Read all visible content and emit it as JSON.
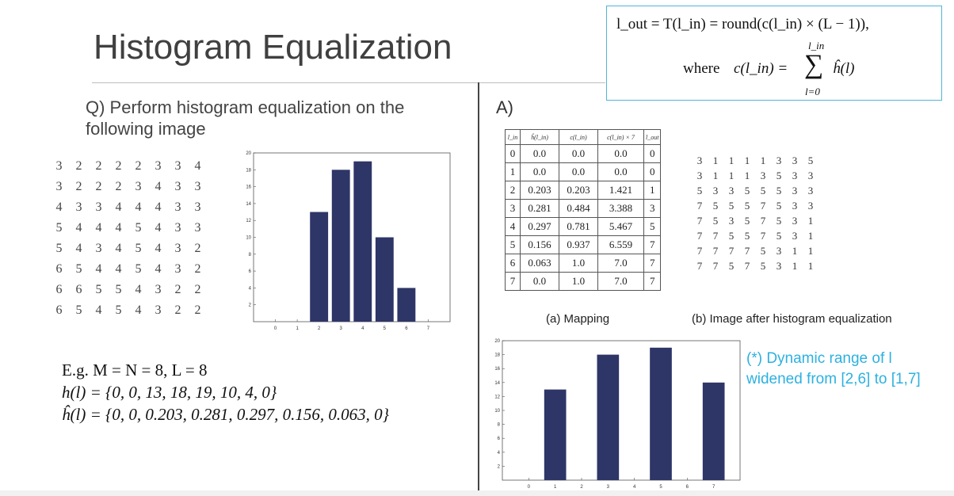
{
  "slide": {
    "title": "Histogram Equalization",
    "question_line1": "Q) Perform histogram equalization on the",
    "question_line2": "following image",
    "answer_label": "A)"
  },
  "formula": {
    "line1": "l_out = T(l_in) = round(c(l_in) × (L − 1)),",
    "line2_word": "where",
    "line2_lhs": "c(l_in) =",
    "sum_top": "l_in",
    "sum_bottom": "l=0",
    "sum_term": "ĥ(l)"
  },
  "input_image": [
    [
      "3",
      "2",
      "2",
      "2",
      "2",
      "3",
      "3",
      "4"
    ],
    [
      "3",
      "2",
      "2",
      "2",
      "3",
      "4",
      "3",
      "3"
    ],
    [
      "4",
      "3",
      "3",
      "4",
      "4",
      "4",
      "3",
      "3"
    ],
    [
      "5",
      "4",
      "4",
      "4",
      "5",
      "4",
      "3",
      "3"
    ],
    [
      "5",
      "4",
      "3",
      "4",
      "5",
      "4",
      "3",
      "2"
    ],
    [
      "6",
      "5",
      "4",
      "4",
      "5",
      "4",
      "3",
      "2"
    ],
    [
      "6",
      "6",
      "5",
      "5",
      "4",
      "3",
      "2",
      "2"
    ],
    [
      "6",
      "5",
      "4",
      "5",
      "4",
      "3",
      "2",
      "2"
    ]
  ],
  "mapping": {
    "headers": [
      "l_in",
      "ĥ(l_in)",
      "c(l_in)",
      "c(l_in) × 7",
      "l_out"
    ],
    "rows": [
      [
        "0",
        "0.0",
        "0.0",
        "0.0",
        "0"
      ],
      [
        "1",
        "0.0",
        "0.0",
        "0.0",
        "0"
      ],
      [
        "2",
        "0.203",
        "0.203",
        "1.421",
        "1"
      ],
      [
        "3",
        "0.281",
        "0.484",
        "3.388",
        "3"
      ],
      [
        "4",
        "0.297",
        "0.781",
        "5.467",
        "5"
      ],
      [
        "5",
        "0.156",
        "0.937",
        "6.559",
        "7"
      ],
      [
        "6",
        "0.063",
        "1.0",
        "7.0",
        "7"
      ],
      [
        "7",
        "0.0",
        "1.0",
        "7.0",
        "7"
      ]
    ],
    "caption": "(a) Mapping"
  },
  "output_image": {
    "rows": [
      [
        "3",
        "1",
        "1",
        "1",
        "1",
        "3",
        "3",
        "5"
      ],
      [
        "3",
        "1",
        "1",
        "1",
        "3",
        "5",
        "3",
        "3"
      ],
      [
        "5",
        "3",
        "3",
        "5",
        "5",
        "5",
        "3",
        "3"
      ],
      [
        "7",
        "5",
        "5",
        "5",
        "7",
        "5",
        "3",
        "3"
      ],
      [
        "7",
        "5",
        "3",
        "5",
        "7",
        "5",
        "3",
        "1"
      ],
      [
        "7",
        "7",
        "5",
        "5",
        "7",
        "5",
        "3",
        "1"
      ],
      [
        "7",
        "7",
        "7",
        "7",
        "5",
        "3",
        "1",
        "1"
      ],
      [
        "7",
        "7",
        "5",
        "7",
        "5",
        "3",
        "1",
        "1"
      ]
    ],
    "caption": "(b) Image after histogram equalization"
  },
  "example": {
    "line1": "E.g. M = N = 8,   L = 8",
    "line2": "h(l) = {0, 0, 13, 18, 19, 10, 4, 0}",
    "line3": "ĥ(l) = {0, 0, 0.203, 0.281, 0.297, 0.156, 0.063, 0}"
  },
  "note": {
    "line1": "(*) Dynamic range of l",
    "line2": "widened from [2,6] to [1,7]"
  },
  "colors": {
    "bar": "#2e3567",
    "accent": "#2cb1e0",
    "box_border": "#4fb6d8"
  },
  "chart_data": [
    {
      "type": "bar",
      "categories": [
        "0",
        "1",
        "2",
        "3",
        "4",
        "5",
        "6",
        "7"
      ],
      "values": [
        0,
        0,
        13,
        18,
        19,
        10,
        4,
        0
      ],
      "yticks": [
        "2",
        "4",
        "6",
        "8",
        "10",
        "12",
        "14",
        "16",
        "18",
        "20"
      ],
      "ylim": [
        0,
        20
      ],
      "grid": false
    },
    {
      "type": "bar",
      "categories": [
        "0",
        "1",
        "2",
        "3",
        "4",
        "5",
        "6",
        "7"
      ],
      "values": [
        0,
        13,
        0,
        18,
        0,
        19,
        0,
        14
      ],
      "yticks": [
        "2",
        "4",
        "6",
        "8",
        "10",
        "12",
        "14",
        "16",
        "18",
        "20"
      ],
      "ylim": [
        0,
        20
      ],
      "grid": false
    }
  ]
}
